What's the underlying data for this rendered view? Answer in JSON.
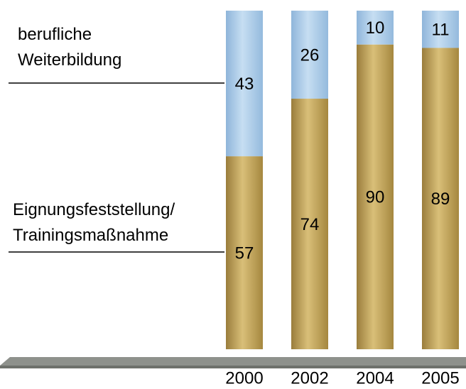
{
  "chart_data": {
    "type": "stacked_bar",
    "categories": [
      "2000",
      "2002",
      "2004",
      "2005"
    ],
    "series": [
      {
        "name": "Eignungsfeststellung/ Trainingsmaßnahme",
        "color": "#c2a45a",
        "values": [
          57,
          74,
          90,
          89
        ]
      },
      {
        "name": "berufliche Weiterbildung",
        "color": "#a9cbe8",
        "values": [
          43,
          26,
          10,
          11
        ]
      }
    ],
    "ylim": [
      0,
      100
    ]
  }
}
